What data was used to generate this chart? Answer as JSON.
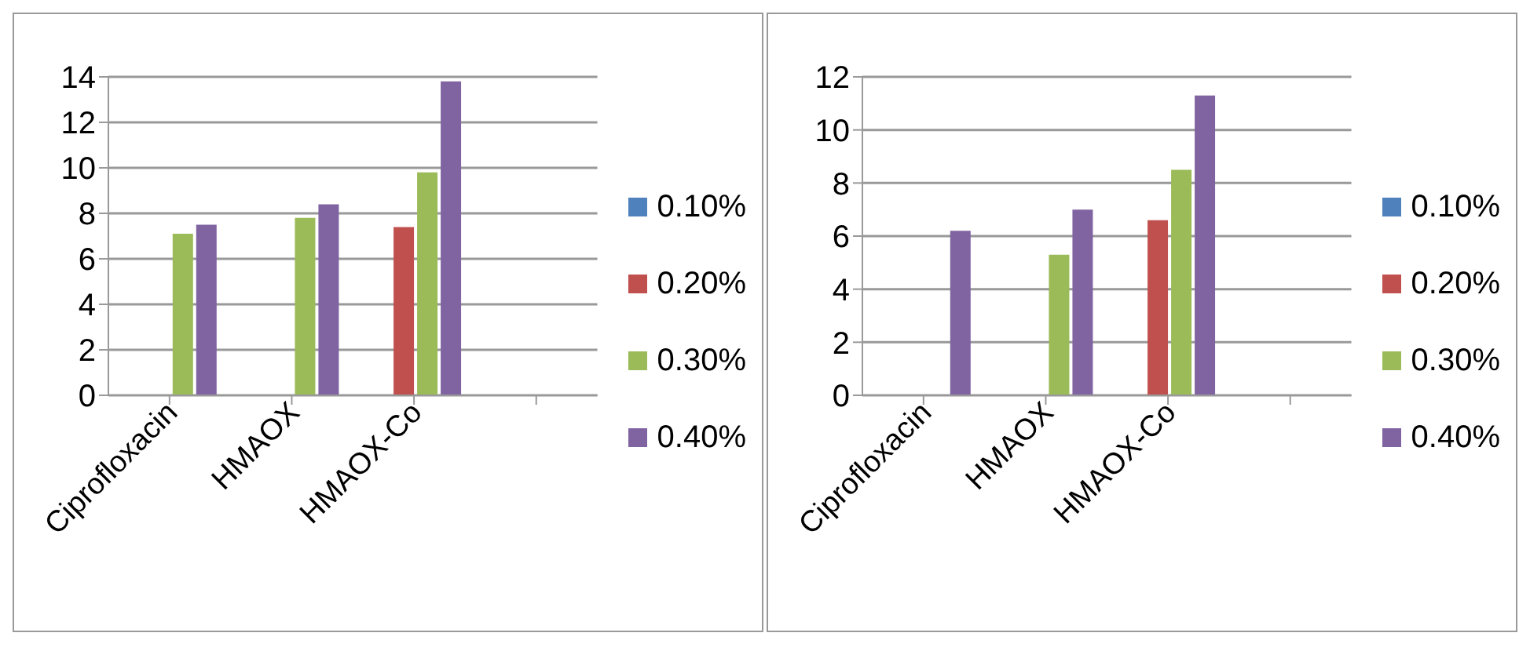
{
  "chart_data": [
    {
      "type": "bar",
      "categories": [
        "Ciprofloxacin",
        "HMAOX",
        "HMAOX-Co",
        null
      ],
      "ylim": [
        0,
        14
      ],
      "yticks": [
        0,
        2,
        4,
        6,
        8,
        10,
        12,
        14
      ],
      "grid": "y",
      "legend": "right",
      "series": [
        {
          "name": "0.10%",
          "color": "#4f81bd",
          "values": [
            null,
            null,
            null,
            null
          ]
        },
        {
          "name": "0.20%",
          "color": "#c0504d",
          "values": [
            null,
            null,
            7.4,
            null
          ]
        },
        {
          "name": "0.30%",
          "color": "#9bbb59",
          "values": [
            7.1,
            7.8,
            9.8,
            null
          ]
        },
        {
          "name": "0.40%",
          "color": "#8064a2",
          "values": [
            7.5,
            8.4,
            13.8,
            null
          ]
        }
      ]
    },
    {
      "type": "bar",
      "categories": [
        "Ciprofloxacin",
        "HMAOX",
        "HMAOX-Co",
        null
      ],
      "ylim": [
        0,
        12
      ],
      "yticks": [
        0,
        2,
        4,
        6,
        8,
        10,
        12
      ],
      "grid": "y",
      "legend": "right",
      "series": [
        {
          "name": "0.10%",
          "color": "#4f81bd",
          "values": [
            null,
            null,
            null,
            null
          ]
        },
        {
          "name": "0.20%",
          "color": "#c0504d",
          "values": [
            null,
            null,
            6.6,
            null
          ]
        },
        {
          "name": "0.30%",
          "color": "#9bbb59",
          "values": [
            null,
            5.3,
            8.5,
            null
          ]
        },
        {
          "name": "0.40%",
          "color": "#8064a2",
          "values": [
            6.2,
            7.0,
            11.3,
            null
          ]
        }
      ]
    }
  ]
}
